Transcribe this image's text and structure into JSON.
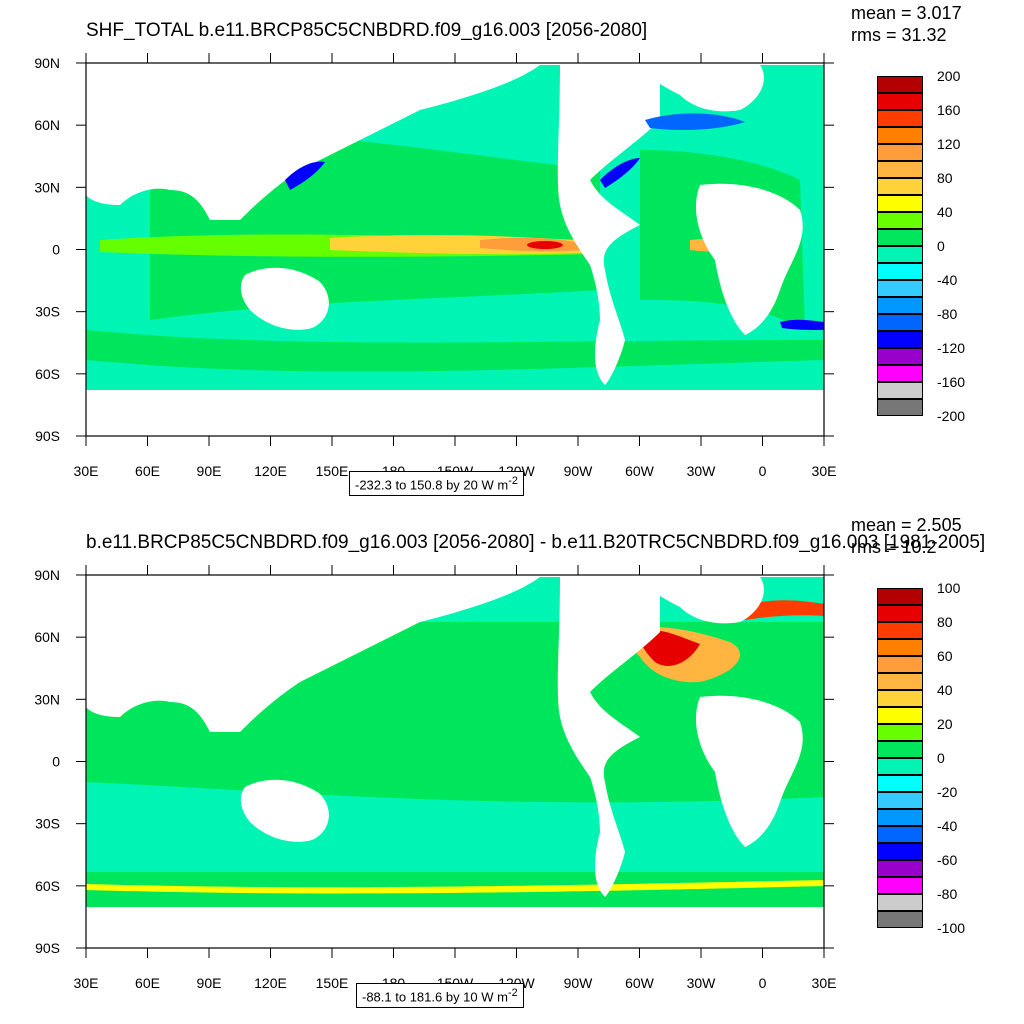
{
  "panels": [
    {
      "title": "SHF_TOTAL b.e11.BRCP85C5CNBDRD.f09_g16.003 [2056-2080]",
      "mean": "mean = 3.017",
      "rms": "rms = 31.32",
      "range_label": "-232.3 to 150.8 by 20",
      "units": "W m",
      "units_exp": "-2",
      "colorbar": {
        "colors": [
          "#b30000",
          "#e60000",
          "#ff3d00",
          "#ff7f00",
          "#ff9d3a",
          "#ffb53f",
          "#ffd23a",
          "#ffff00",
          "#66ff00",
          "#00e65c",
          "#00f5b4",
          "#00ffff",
          "#33ccff",
          "#0099ff",
          "#0066ff",
          "#0000ff",
          "#9900cc",
          "#ff00ff",
          "#cccccc",
          "#777777"
        ],
        "labels": [
          "200",
          "160",
          "120",
          "80",
          "40",
          "0",
          "-40",
          "-80",
          "-120",
          "-160",
          "-200"
        ]
      }
    },
    {
      "title": "b.e11.BRCP85C5CNBDRD.f09_g16.003 [2056-2080] - b.e11.B20TRC5CNBDRD.f09_g16.003 [1981-2005]",
      "mean": "mean = 2.505",
      "rms": "rms = 10.2",
      "range_label": "-88.1 to 181.6 by 10",
      "units": "W m",
      "units_exp": "-2",
      "colorbar": {
        "colors": [
          "#b30000",
          "#e60000",
          "#ff3d00",
          "#ff7f00",
          "#ff9d3a",
          "#ffb53f",
          "#ffd23a",
          "#ffff00",
          "#66ff00",
          "#00e65c",
          "#00f5b4",
          "#00ffff",
          "#33ccff",
          "#0099ff",
          "#0066ff",
          "#0000ff",
          "#9900cc",
          "#ff00ff",
          "#cccccc",
          "#777777"
        ],
        "labels": [
          "100",
          "80",
          "60",
          "40",
          "20",
          "0",
          "-20",
          "-40",
          "-60",
          "-80",
          "-100"
        ]
      }
    }
  ],
  "axes": {
    "lat_labels": [
      "90N",
      "60N",
      "30N",
      "0",
      "30S",
      "60S",
      "90S"
    ],
    "lon_labels": [
      "30E",
      "60E",
      "90E",
      "120E",
      "150E",
      "180",
      "150W",
      "120W",
      "90W",
      "60W",
      "30W",
      "0",
      "30E"
    ]
  }
}
